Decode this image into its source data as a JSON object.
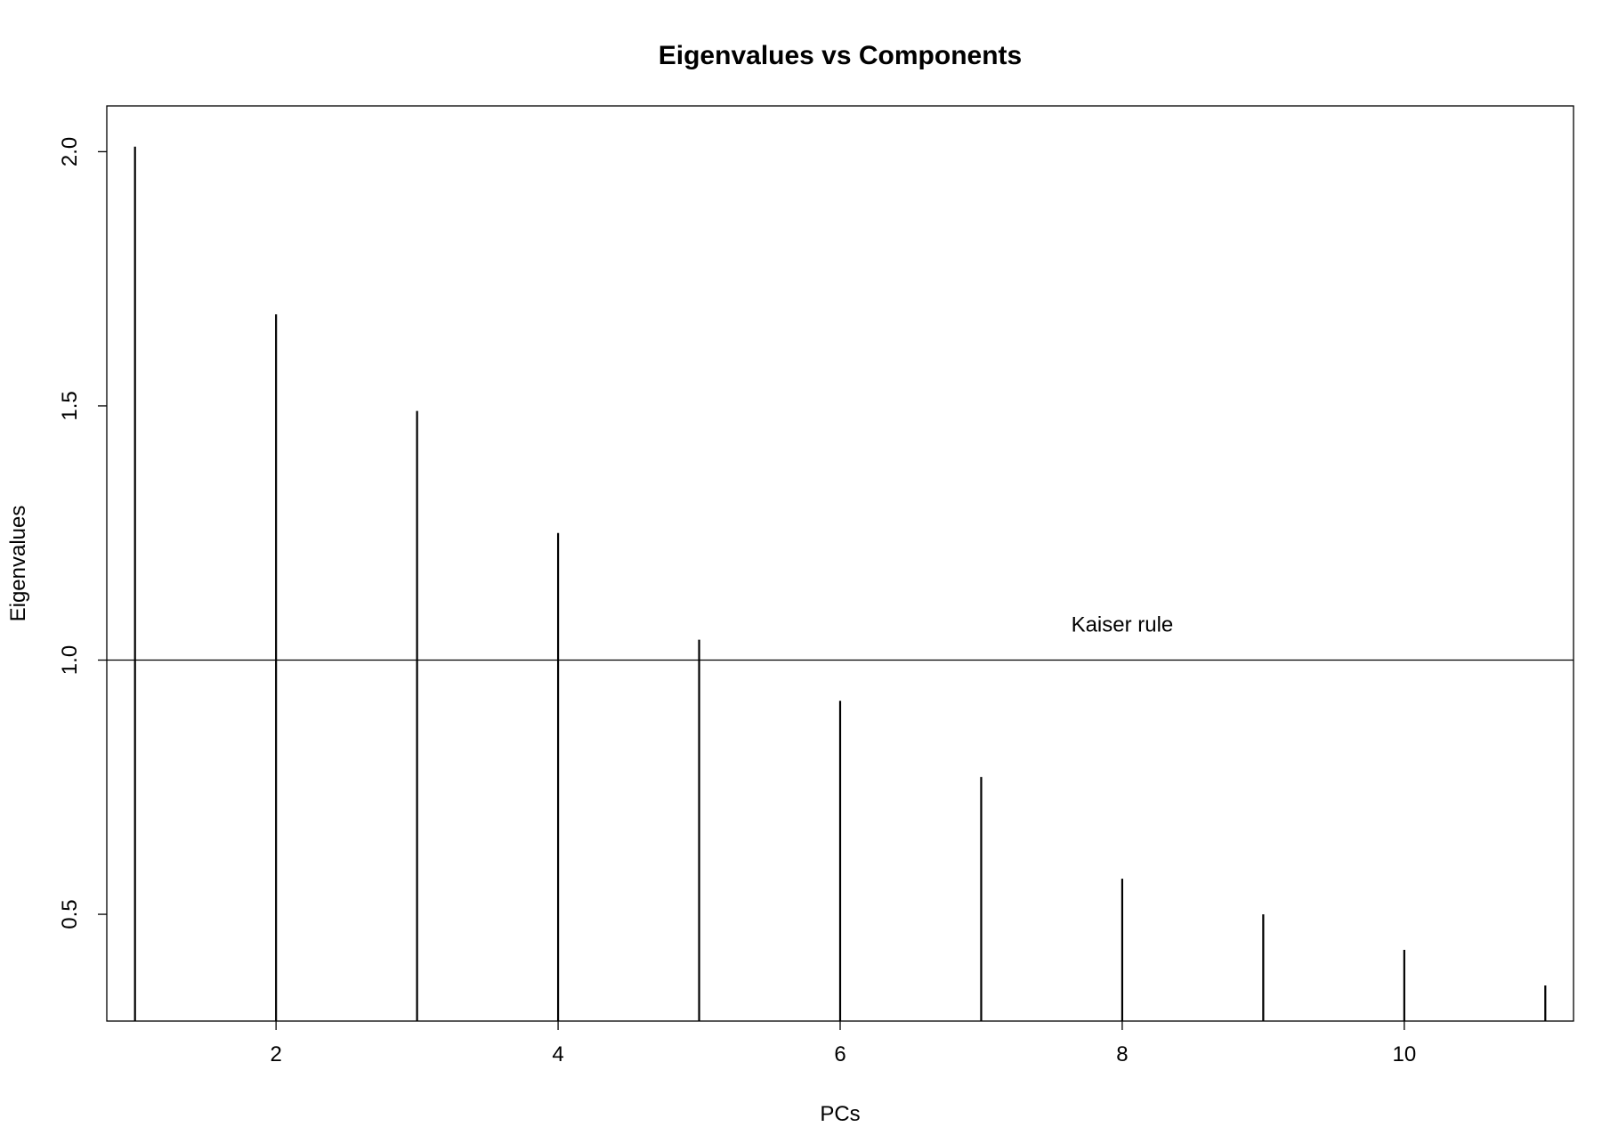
{
  "chart_data": {
    "type": "bar",
    "title": "Eigenvalues vs Components",
    "xlabel": "PCs",
    "ylabel": "Eigenvalues",
    "x": [
      1,
      2,
      3,
      4,
      5,
      6,
      7,
      8,
      9,
      10,
      11
    ],
    "values": [
      2.01,
      1.68,
      1.49,
      1.25,
      1.04,
      0.92,
      0.77,
      0.57,
      0.5,
      0.43,
      0.36
    ],
    "baseline": 0.29,
    "xlim": [
      0.8,
      11.2
    ],
    "ylim": [
      0.29,
      2.09
    ],
    "x_ticks": [
      2,
      4,
      6,
      8,
      10
    ],
    "x_tick_labels": [
      "2",
      "4",
      "6",
      "8",
      "10"
    ],
    "y_ticks": [
      0.5,
      1.0,
      1.5,
      2.0
    ],
    "y_tick_labels": [
      "0.5",
      "1.0",
      "1.5",
      "2.0"
    ],
    "reference_line": {
      "y": 1.0,
      "label": "Kaiser rule",
      "label_x": 8.0
    },
    "grid": false,
    "bar_style": "vertical lines (histogram-like)",
    "colors": {
      "bars": "#000000",
      "axes": "#000000",
      "background": "#ffffff"
    }
  }
}
